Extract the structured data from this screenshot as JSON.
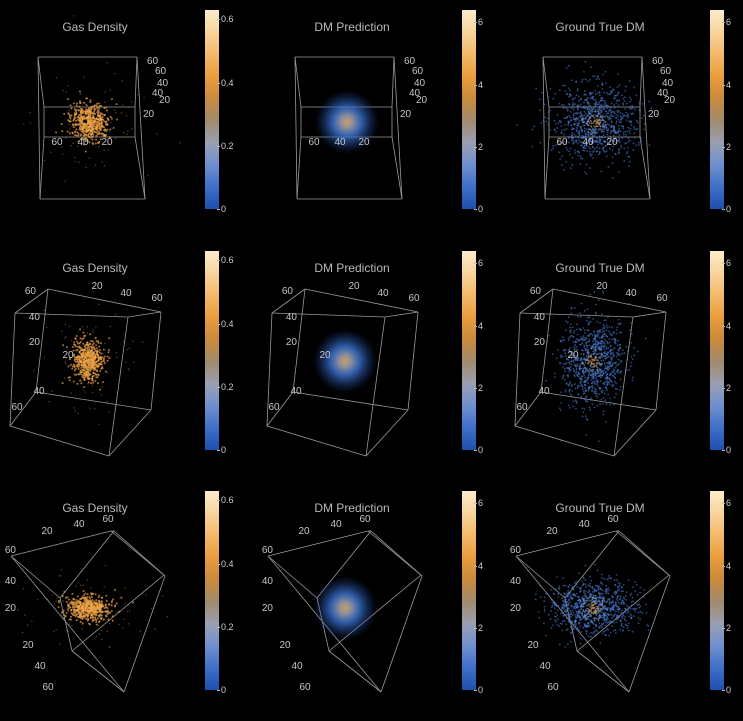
{
  "colorbar_colors": [
    "#1d4fb0",
    "#3f6fc8",
    "#6f8fd0",
    "#9a9fb2",
    "#a08a6c",
    "#c98a3c",
    "#ea9d3d",
    "#f3b96a",
    "#f8d49c",
    "#fceccc"
  ],
  "colors": {
    "gas": "#f0a447",
    "dm": "#4f86e8",
    "box": "#9a9a9a",
    "label": "#c6c6c6"
  },
  "chart_data": [
    {
      "type": "scatter",
      "row": 1,
      "panel": "gas",
      "title": "Gas Density",
      "colorbar": {
        "min": 0,
        "max": 0.63,
        "ticks": [
          "0",
          "0.2",
          "0.4",
          "0.6"
        ],
        "tick_values": [
          0,
          0.2,
          0.4,
          0.6
        ]
      },
      "axis_ticks": {
        "a": [
          "60",
          "40",
          "20"
        ],
        "b": [
          "20",
          "40",
          "60"
        ],
        "c": [
          "20",
          "40",
          "60"
        ]
      }
    },
    {
      "type": "scatter",
      "row": 1,
      "panel": "dm_prediction",
      "title": "DM Prediction",
      "colorbar": {
        "min": 0,
        "max": 6.4,
        "ticks": [
          "0",
          "2",
          "4",
          "6"
        ],
        "tick_values": [
          0,
          2,
          4,
          6
        ]
      },
      "axis_ticks": {
        "a": [
          "60",
          "40",
          "20"
        ],
        "b": [
          "20",
          "40",
          "60"
        ],
        "c": [
          "20",
          "40",
          "60"
        ]
      }
    },
    {
      "type": "scatter",
      "row": 1,
      "panel": "ground_true_dm",
      "title": "Ground True DM",
      "colorbar": {
        "min": 0,
        "max": 6.4,
        "ticks": [
          "0",
          "2",
          "4",
          "6"
        ],
        "tick_values": [
          0,
          2,
          4,
          6
        ]
      },
      "axis_ticks": {
        "a": [
          "60",
          "40",
          "20"
        ],
        "b": [
          "20",
          "40",
          "60"
        ],
        "c": [
          "20",
          "40",
          "60"
        ]
      }
    },
    {
      "type": "scatter",
      "row": 2,
      "panel": "gas",
      "title": "Gas Density",
      "colorbar": {
        "min": 0,
        "max": 0.63,
        "ticks": [
          "0",
          "0.2",
          "0.4",
          "0.6"
        ],
        "tick_values": [
          0,
          0.2,
          0.4,
          0.6
        ]
      },
      "axis_ticks": {
        "top": [
          "20",
          "40",
          "60"
        ],
        "left": [
          "60",
          "40",
          "20"
        ],
        "bottom": [
          "20",
          "40",
          "60"
        ]
      }
    },
    {
      "type": "scatter",
      "row": 2,
      "panel": "dm_prediction",
      "title": "DM Prediction",
      "colorbar": {
        "min": 0,
        "max": 6.4,
        "ticks": [
          "0",
          "2",
          "4",
          "6"
        ],
        "tick_values": [
          0,
          2,
          4,
          6
        ]
      },
      "axis_ticks": {
        "top": [
          "20",
          "40",
          "60"
        ],
        "left": [
          "60",
          "40",
          "20"
        ],
        "bottom": [
          "20",
          "40",
          "60"
        ]
      }
    },
    {
      "type": "scatter",
      "row": 2,
      "panel": "ground_true_dm",
      "title": "Ground True DM",
      "colorbar": {
        "min": 0,
        "max": 6.4,
        "ticks": [
          "0",
          "2",
          "4",
          "6"
        ],
        "tick_values": [
          0,
          2,
          4,
          6
        ]
      },
      "axis_ticks": {
        "top": [
          "20",
          "40",
          "60"
        ],
        "left": [
          "60",
          "40",
          "20"
        ],
        "bottom": [
          "20",
          "40",
          "60"
        ]
      }
    },
    {
      "type": "scatter",
      "row": 3,
      "panel": "gas",
      "title": "Gas Density",
      "colorbar": {
        "min": 0,
        "max": 0.63,
        "ticks": [
          "0",
          "0.2",
          "0.4",
          "0.6"
        ],
        "tick_values": [
          0,
          0.2,
          0.4,
          0.6
        ]
      },
      "axis_ticks": {
        "top": [
          "20",
          "40",
          "60"
        ],
        "left": [
          "60",
          "40",
          "20"
        ],
        "bottom": [
          "20",
          "40",
          "60"
        ]
      }
    },
    {
      "type": "scatter",
      "row": 3,
      "panel": "dm_prediction",
      "title": "DM Prediction",
      "colorbar": {
        "min": 0,
        "max": 6.4,
        "ticks": [
          "0",
          "2",
          "4",
          "6"
        ],
        "tick_values": [
          0,
          2,
          4,
          6
        ]
      },
      "axis_ticks": {
        "top": [
          "20",
          "40",
          "60"
        ],
        "left": [
          "60",
          "40",
          "20"
        ],
        "bottom": [
          "20",
          "40",
          "60"
        ]
      }
    },
    {
      "type": "scatter",
      "row": 3,
      "panel": "ground_true_dm",
      "title": "Ground True DM",
      "colorbar": {
        "min": 0,
        "max": 6.4,
        "ticks": [
          "0",
          "2",
          "4",
          "6"
        ],
        "tick_values": [
          0,
          2,
          4,
          6
        ]
      },
      "axis_ticks": {
        "top": [
          "20",
          "40",
          "60"
        ],
        "left": [
          "60",
          "40",
          "20"
        ],
        "bottom": [
          "20",
          "40",
          "60"
        ]
      }
    }
  ]
}
